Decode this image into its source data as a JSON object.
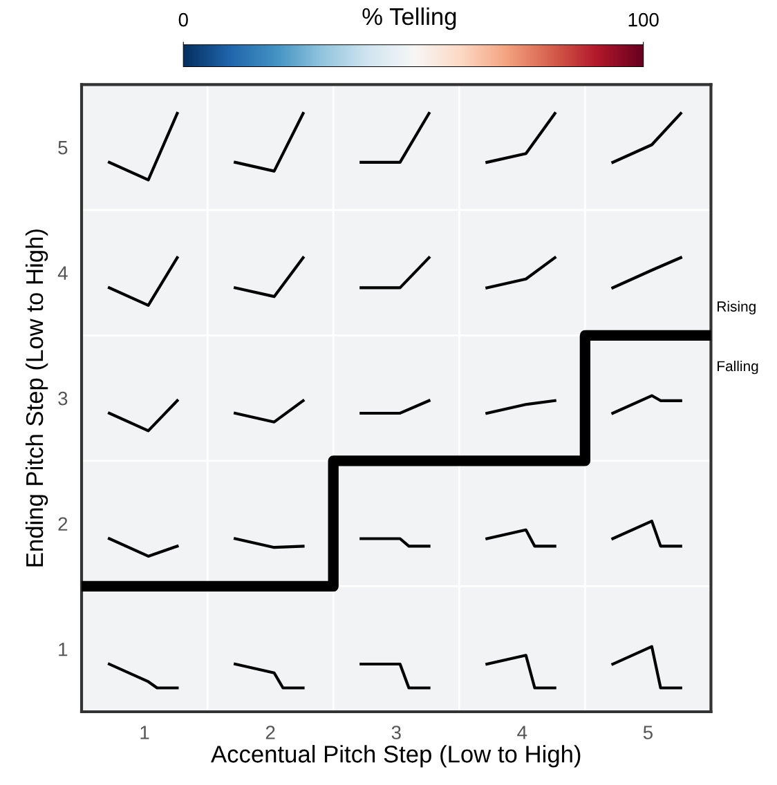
{
  "chart_data": {
    "type": "line",
    "xlabel": "Accentual Pitch Step (Low to High)",
    "ylabel": "Ending Pitch Step (Low to High)",
    "clabel": "% Telling",
    "clim": [
      0,
      100
    ],
    "cticks": [
      0,
      100
    ],
    "xlim": [
      0.5,
      5.5
    ],
    "ylim": [
      0.5,
      5.5
    ],
    "xticks": [
      1,
      2,
      3,
      4,
      5
    ],
    "yticks": [
      1,
      2,
      3,
      4,
      5
    ],
    "grid": true,
    "marker": "none",
    "line_style": "solid",
    "annotations": [
      "Rising",
      "Falling"
    ],
    "series": [
      {
        "color": "#000000",
        "x": [
          0.72,
          1.03,
          1.26
        ],
        "values": [
          4.88,
          4.74,
          5.27
        ]
      },
      {
        "color": "#000000",
        "x": [
          1.72,
          2.03,
          2.26
        ],
        "values": [
          4.88,
          4.81,
          5.27
        ]
      },
      {
        "color": "#000000",
        "x": [
          2.72,
          3.03,
          3.26
        ],
        "values": [
          4.88,
          4.88,
          5.27
        ]
      },
      {
        "color": "#000000",
        "x": [
          3.72,
          4.03,
          4.26
        ],
        "values": [
          4.88,
          4.95,
          5.27
        ]
      },
      {
        "color": "#000000",
        "x": [
          4.72,
          5.03,
          5.26
        ],
        "values": [
          4.88,
          5.02,
          5.27
        ]
      },
      {
        "color": "#000000",
        "x": [
          0.72,
          1.03,
          1.26
        ],
        "values": [
          3.88,
          3.74,
          4.12
        ]
      },
      {
        "color": "#000000",
        "x": [
          1.72,
          2.03,
          2.26
        ],
        "values": [
          3.88,
          3.81,
          4.12
        ]
      },
      {
        "color": "#000000",
        "x": [
          2.72,
          3.03,
          3.26
        ],
        "values": [
          3.88,
          3.88,
          4.12
        ]
      },
      {
        "color": "#000000",
        "x": [
          3.72,
          4.03,
          4.26
        ],
        "values": [
          3.88,
          3.95,
          4.12
        ]
      },
      {
        "color": "#000000",
        "x": [
          4.72,
          5.03,
          5.26
        ],
        "values": [
          3.88,
          4.02,
          4.12
        ]
      },
      {
        "color": "#000000",
        "x": [
          0.72,
          1.03,
          1.26
        ],
        "values": [
          2.88,
          2.74,
          2.98
        ]
      },
      {
        "color": "#000000",
        "x": [
          1.72,
          2.03,
          2.26
        ],
        "values": [
          2.88,
          2.81,
          2.98
        ]
      },
      {
        "color": "#000000",
        "x": [
          2.72,
          3.03,
          3.26
        ],
        "values": [
          2.88,
          2.88,
          2.98
        ]
      },
      {
        "color": "#000000",
        "x": [
          3.72,
          4.03,
          4.26
        ],
        "values": [
          2.88,
          2.95,
          2.98
        ]
      },
      {
        "color": "#000000",
        "x": [
          4.72,
          5.03,
          5.1,
          5.26
        ],
        "values": [
          2.88,
          3.02,
          2.98,
          2.98
        ]
      },
      {
        "color": "#000000",
        "x": [
          0.72,
          1.03,
          1.26
        ],
        "values": [
          1.88,
          1.74,
          1.82
        ]
      },
      {
        "color": "#000000",
        "x": [
          1.72,
          2.03,
          2.26
        ],
        "values": [
          1.88,
          1.81,
          1.82
        ]
      },
      {
        "color": "#000000",
        "x": [
          2.72,
          3.03,
          3.1,
          3.26
        ],
        "values": [
          1.88,
          1.88,
          1.82,
          1.82
        ]
      },
      {
        "color": "#000000",
        "x": [
          3.72,
          4.03,
          4.1,
          4.26
        ],
        "values": [
          1.88,
          1.95,
          1.82,
          1.82
        ]
      },
      {
        "color": "#000000",
        "x": [
          4.72,
          5.03,
          5.1,
          5.26
        ],
        "values": [
          1.88,
          2.02,
          1.82,
          1.82
        ]
      },
      {
        "color": "#000000",
        "x": [
          0.72,
          1.03,
          1.1,
          1.26
        ],
        "values": [
          0.88,
          0.74,
          0.69,
          0.69
        ]
      },
      {
        "color": "#000000",
        "x": [
          1.72,
          2.03,
          2.1,
          2.26
        ],
        "values": [
          0.88,
          0.81,
          0.69,
          0.69
        ]
      },
      {
        "color": "#000000",
        "x": [
          2.72,
          3.03,
          3.1,
          3.26
        ],
        "values": [
          0.88,
          0.88,
          0.69,
          0.69
        ]
      },
      {
        "color": "#000000",
        "x": [
          3.72,
          4.03,
          4.1,
          4.26
        ],
        "values": [
          0.88,
          0.95,
          0.69,
          0.69
        ]
      },
      {
        "color": "#000000",
        "x": [
          4.72,
          5.03,
          5.1,
          5.26
        ],
        "values": [
          0.88,
          1.02,
          0.69,
          0.69
        ]
      },
      {
        "type": "step",
        "color": "#000000",
        "x": [
          0.5,
          2.5,
          4.5,
          5.5
        ],
        "values": [
          1.5,
          2.5,
          3.5,
          3.5
        ]
      }
    ]
  }
}
